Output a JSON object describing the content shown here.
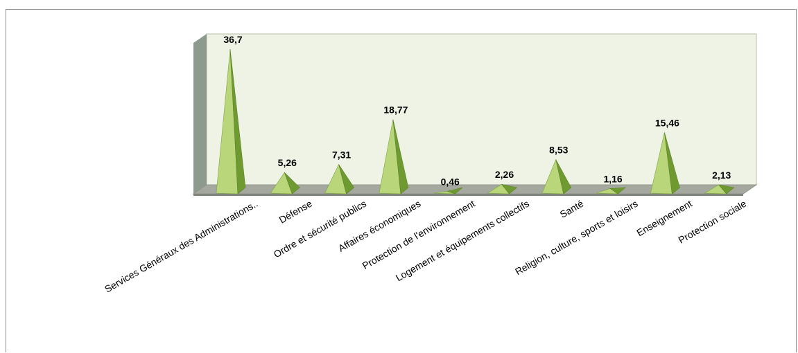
{
  "chart_data": {
    "type": "bar",
    "style": "3d-pyramid",
    "categories": [
      "Services Généraux des Administrations..",
      "Défense",
      "Ordre et sécurité publics",
      "Affaires économiques",
      "Protection de l'environnement",
      "Logement et équipements collectifs",
      "Santé",
      "Religion, culture, sports et loisirs",
      "Enseignement",
      "Protection sociale"
    ],
    "values": [
      36.7,
      5.26,
      7.31,
      18.77,
      0.46,
      2.26,
      8.53,
      1.16,
      15.46,
      2.13
    ],
    "value_labels": [
      "36,7",
      "5,26",
      "7,31",
      "18,77",
      "0,46",
      "2,26",
      "8,53",
      "1,16",
      "15,46",
      "2,13"
    ],
    "ylim": [
      0,
      36.7
    ],
    "grid": false,
    "legend": "none",
    "colors": {
      "pyramid_light": "#b9d77a",
      "pyramid_dark": "#6f9a32",
      "back_wall": "#eef3e6",
      "side_wall": "#8e9a8e",
      "floor": "#a4a89f"
    }
  }
}
